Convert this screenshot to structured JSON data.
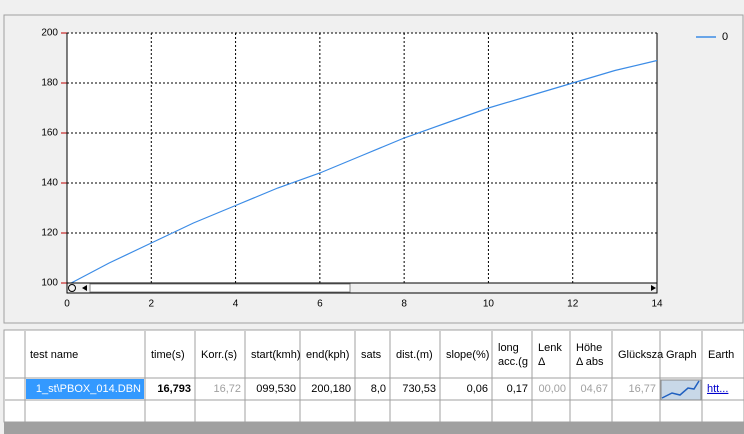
{
  "chart_data": {
    "type": "line",
    "x": [
      0.1,
      1,
      2,
      3,
      4,
      5,
      6,
      7,
      8,
      9,
      10,
      11,
      12,
      13,
      14
    ],
    "series": [
      {
        "name": "0",
        "color": "#3c8ce6",
        "values": [
          100,
          108,
          116,
          124,
          131,
          138,
          144,
          151,
          158,
          164,
          170,
          175,
          180,
          185,
          189
        ]
      }
    ],
    "xlim": [
      0,
      14
    ],
    "ylim": [
      100,
      200
    ],
    "xticks": [
      0,
      2,
      4,
      6,
      8,
      10,
      12,
      14
    ],
    "yticks": [
      100,
      120,
      140,
      160,
      180,
      200
    ],
    "grid": true,
    "legend": "top-right"
  },
  "table": {
    "columns": [
      {
        "header": [
          "test name"
        ],
        "cells": [
          "1_st\\PBOX_014.DBN"
        ]
      },
      {
        "header": [
          "time(s)"
        ],
        "cells": [
          "16,793"
        ]
      },
      {
        "header": [
          "Korr.(s)"
        ],
        "cells": [
          "16,72"
        ]
      },
      {
        "header": [
          "start(kmh)"
        ],
        "cells": [
          "099,530"
        ]
      },
      {
        "header": [
          "end(kph)"
        ],
        "cells": [
          "200,180"
        ]
      },
      {
        "header": [
          "sats"
        ],
        "cells": [
          "8,0"
        ]
      },
      {
        "header": [
          "dist.(m)"
        ],
        "cells": [
          "730,53"
        ]
      },
      {
        "header": [
          "slope(%)"
        ],
        "cells": [
          "0,06"
        ]
      },
      {
        "header": [
          "long",
          "acc.(g"
        ],
        "cells": [
          "0,17"
        ]
      },
      {
        "header": [
          "Lenk",
          "Δ"
        ],
        "cells": [
          "00,00"
        ]
      },
      {
        "header": [
          "Höhe",
          "Δ abs"
        ],
        "cells": [
          "04,67"
        ]
      },
      {
        "header": [
          "Glücksza"
        ],
        "cells": [
          "16,77"
        ]
      },
      {
        "header": [
          "Graph"
        ]
      },
      {
        "header": [
          "Earth"
        ],
        "cells": [
          "htt..."
        ]
      }
    ]
  }
}
